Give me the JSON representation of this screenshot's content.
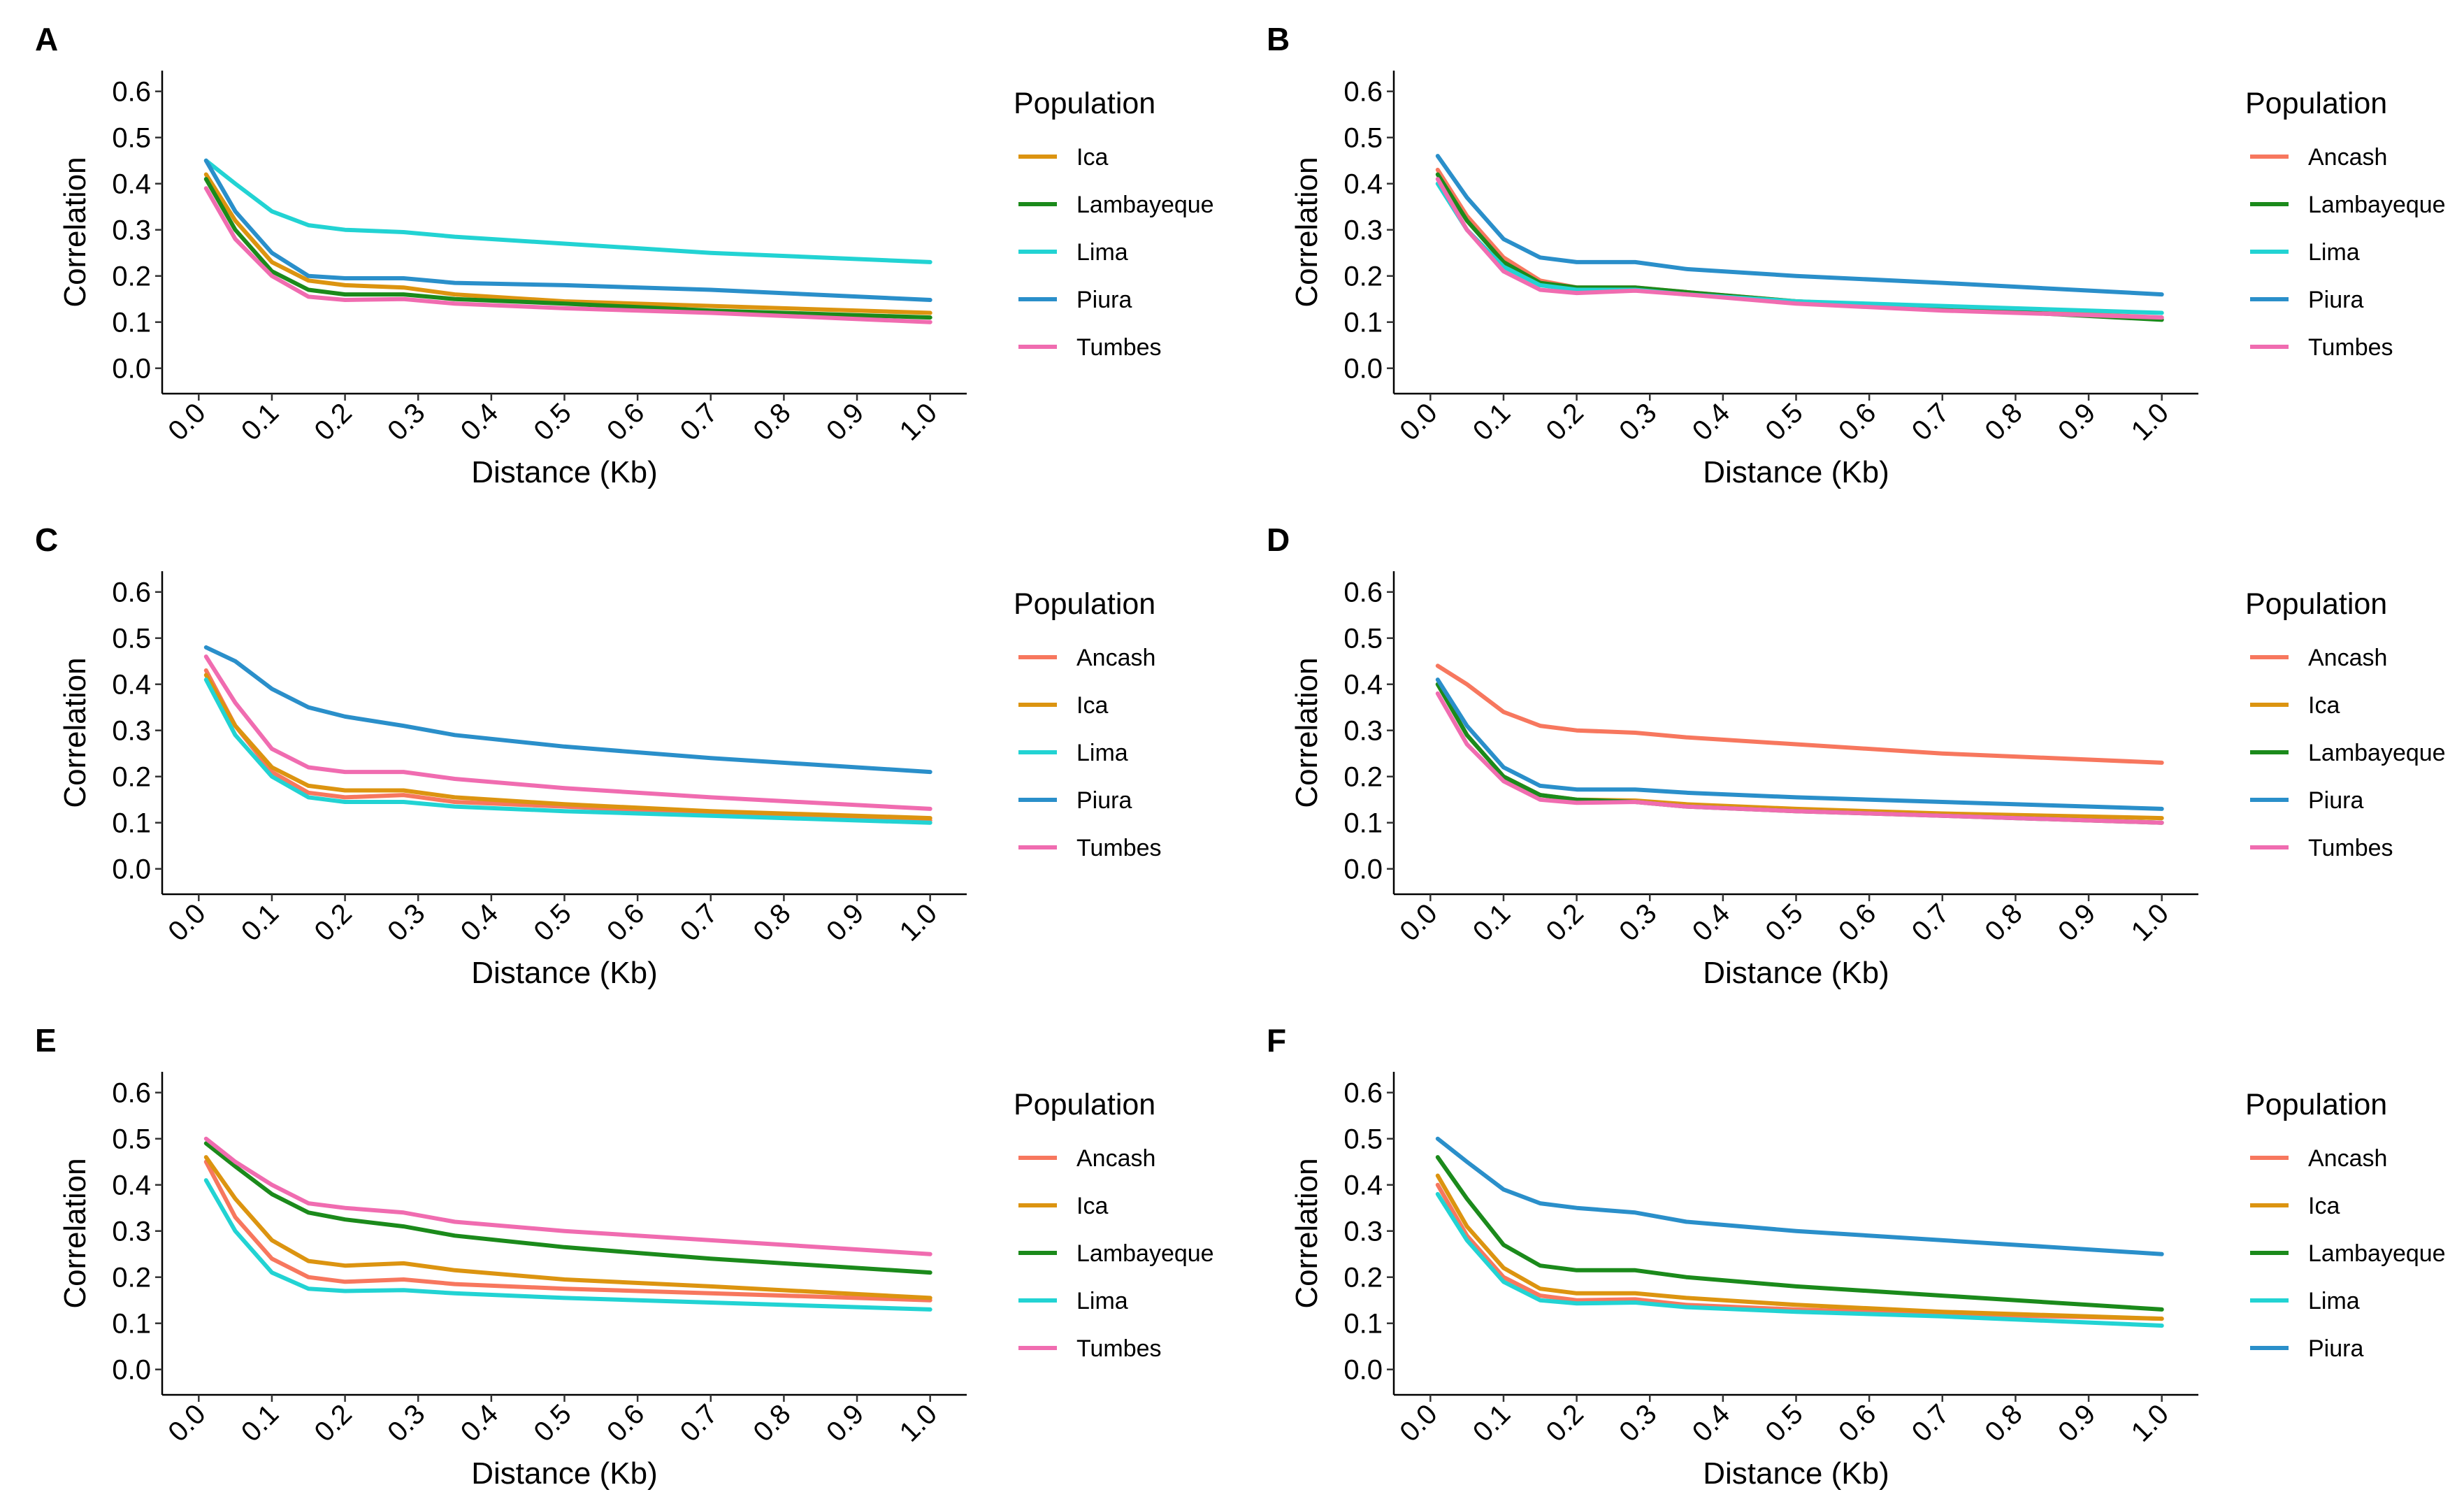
{
  "chart_data": [
    {
      "panel": "A",
      "type": "line",
      "x_label": "Distance (Kb)",
      "y_label": "Correlation",
      "legend_title": "Population",
      "x": [
        0.01,
        0.05,
        0.1,
        0.15,
        0.2,
        0.28,
        0.35,
        0.5,
        0.7,
        1.0
      ],
      "series": [
        {
          "name": "Ica",
          "color": "#dc9410",
          "values": [
            0.42,
            0.32,
            0.23,
            0.19,
            0.18,
            0.175,
            0.16,
            0.145,
            0.135,
            0.12
          ]
        },
        {
          "name": "Lambayeque",
          "color": "#1b8a1b",
          "values": [
            0.41,
            0.3,
            0.21,
            0.17,
            0.16,
            0.16,
            0.15,
            0.14,
            0.125,
            0.11
          ]
        },
        {
          "name": "Lima",
          "color": "#22d3d3",
          "values": [
            0.45,
            0.4,
            0.34,
            0.31,
            0.3,
            0.295,
            0.285,
            0.27,
            0.25,
            0.23
          ]
        },
        {
          "name": "Piura",
          "color": "#2a8fca",
          "values": [
            0.45,
            0.34,
            0.25,
            0.2,
            0.195,
            0.195,
            0.185,
            0.18,
            0.17,
            0.148
          ]
        },
        {
          "name": "Tumbes",
          "color": "#f06cb0",
          "values": [
            0.39,
            0.28,
            0.2,
            0.155,
            0.148,
            0.15,
            0.14,
            0.13,
            0.12,
            0.1
          ]
        }
      ],
      "xlim": [
        -0.05,
        1.05
      ],
      "ylim": [
        -0.055,
        0.645
      ],
      "xticks": [
        {
          "value": 0,
          "label": "0.0"
        },
        0.1,
        0.2,
        0.3,
        0.4,
        0.5,
        0.6,
        0.7,
        0.8,
        0.9,
        {
          "value": 1,
          "label": "1.0"
        }
      ],
      "yticks": [
        {
          "value": 0,
          "label": "0.0"
        },
        0.1,
        0.2,
        0.3,
        0.4,
        0.5,
        0.6
      ]
    },
    {
      "panel": "B",
      "type": "line",
      "x_label": "Distance (Kb)",
      "y_label": "Correlation",
      "legend_title": "Population",
      "x": [
        0.01,
        0.05,
        0.1,
        0.15,
        0.2,
        0.28,
        0.35,
        0.5,
        0.7,
        1.0
      ],
      "series": [
        {
          "name": "Ancash",
          "color": "#f7775e",
          "values": [
            0.43,
            0.33,
            0.24,
            0.19,
            0.175,
            0.175,
            0.165,
            0.145,
            0.13,
            0.11
          ]
        },
        {
          "name": "Lambayeque",
          "color": "#1b8a1b",
          "values": [
            0.42,
            0.32,
            0.23,
            0.185,
            0.175,
            0.175,
            0.165,
            0.145,
            0.13,
            0.105
          ]
        },
        {
          "name": "Lima",
          "color": "#22d3d3",
          "values": [
            0.4,
            0.3,
            0.22,
            0.18,
            0.17,
            0.17,
            0.16,
            0.145,
            0.135,
            0.12
          ]
        },
        {
          "name": "Piura",
          "color": "#2a8fca",
          "values": [
            0.46,
            0.37,
            0.28,
            0.24,
            0.23,
            0.23,
            0.215,
            0.2,
            0.185,
            0.16
          ]
        },
        {
          "name": "Tumbes",
          "color": "#f06cb0",
          "values": [
            0.41,
            0.3,
            0.21,
            0.17,
            0.163,
            0.168,
            0.16,
            0.14,
            0.125,
            0.11
          ]
        }
      ],
      "xlim": [
        -0.05,
        1.05
      ],
      "ylim": [
        -0.055,
        0.645
      ],
      "xticks": [
        {
          "value": 0,
          "label": "0.0"
        },
        0.1,
        0.2,
        0.3,
        0.4,
        0.5,
        0.6,
        0.7,
        0.8,
        0.9,
        {
          "value": 1,
          "label": "1.0"
        }
      ],
      "yticks": [
        {
          "value": 0,
          "label": "0.0"
        },
        0.1,
        0.2,
        0.3,
        0.4,
        0.5,
        0.6
      ]
    },
    {
      "panel": "C",
      "type": "line",
      "x_label": "Distance (Kb)",
      "y_label": "Correlation",
      "legend_title": "Population",
      "x": [
        0.01,
        0.05,
        0.1,
        0.15,
        0.2,
        0.28,
        0.35,
        0.5,
        0.7,
        1.0
      ],
      "series": [
        {
          "name": "Ancash",
          "color": "#f7775e",
          "values": [
            0.43,
            0.31,
            0.21,
            0.165,
            0.155,
            0.16,
            0.145,
            0.135,
            0.12,
            0.105
          ]
        },
        {
          "name": "Ica",
          "color": "#dc9410",
          "values": [
            0.42,
            0.31,
            0.22,
            0.18,
            0.17,
            0.17,
            0.155,
            0.14,
            0.125,
            0.11
          ]
        },
        {
          "name": "Lima",
          "color": "#22d3d3",
          "values": [
            0.41,
            0.29,
            0.2,
            0.155,
            0.145,
            0.145,
            0.135,
            0.125,
            0.115,
            0.1
          ]
        },
        {
          "name": "Piura",
          "color": "#2a8fca",
          "values": [
            0.48,
            0.45,
            0.39,
            0.35,
            0.33,
            0.31,
            0.29,
            0.265,
            0.24,
            0.21
          ]
        },
        {
          "name": "Tumbes",
          "color": "#f06cb0",
          "values": [
            0.46,
            0.36,
            0.26,
            0.22,
            0.21,
            0.21,
            0.195,
            0.175,
            0.155,
            0.13
          ]
        }
      ],
      "xlim": [
        -0.05,
        1.05
      ],
      "ylim": [
        -0.055,
        0.645
      ],
      "xticks": [
        {
          "value": 0,
          "label": "0.0"
        },
        0.1,
        0.2,
        0.3,
        0.4,
        0.5,
        0.6,
        0.7,
        0.8,
        0.9,
        {
          "value": 1,
          "label": "1.0"
        }
      ],
      "yticks": [
        {
          "value": 0,
          "label": "0.0"
        },
        0.1,
        0.2,
        0.3,
        0.4,
        0.5,
        0.6
      ]
    },
    {
      "panel": "D",
      "type": "line",
      "x_label": "Distance (Kb)",
      "y_label": "Correlation",
      "legend_title": "Population",
      "x": [
        0.01,
        0.05,
        0.1,
        0.15,
        0.2,
        0.28,
        0.35,
        0.5,
        0.7,
        1.0
      ],
      "series": [
        {
          "name": "Ancash",
          "color": "#f7775e",
          "values": [
            0.44,
            0.4,
            0.34,
            0.31,
            0.3,
            0.295,
            0.285,
            0.27,
            0.25,
            0.23
          ]
        },
        {
          "name": "Ica",
          "color": "#dc9410",
          "values": [
            0.4,
            0.29,
            0.2,
            0.16,
            0.15,
            0.148,
            0.14,
            0.13,
            0.12,
            0.11
          ]
        },
        {
          "name": "Lambayeque",
          "color": "#1b8a1b",
          "values": [
            0.4,
            0.29,
            0.2,
            0.16,
            0.15,
            0.145,
            0.135,
            0.125,
            0.115,
            0.1
          ]
        },
        {
          "name": "Piura",
          "color": "#2a8fca",
          "values": [
            0.41,
            0.31,
            0.22,
            0.18,
            0.172,
            0.172,
            0.165,
            0.155,
            0.145,
            0.13
          ]
        },
        {
          "name": "Tumbes",
          "color": "#f06cb0",
          "values": [
            0.38,
            0.27,
            0.19,
            0.15,
            0.143,
            0.145,
            0.135,
            0.125,
            0.115,
            0.1
          ]
        }
      ],
      "xlim": [
        -0.05,
        1.05
      ],
      "ylim": [
        -0.055,
        0.645
      ],
      "xticks": [
        {
          "value": 0,
          "label": "0.0"
        },
        0.1,
        0.2,
        0.3,
        0.4,
        0.5,
        0.6,
        0.7,
        0.8,
        0.9,
        {
          "value": 1,
          "label": "1.0"
        }
      ],
      "yticks": [
        {
          "value": 0,
          "label": "0.0"
        },
        0.1,
        0.2,
        0.3,
        0.4,
        0.5,
        0.6
      ]
    },
    {
      "panel": "E",
      "type": "line",
      "x_label": "Distance (Kb)",
      "y_label": "Correlation",
      "legend_title": "Population",
      "x": [
        0.01,
        0.05,
        0.1,
        0.15,
        0.2,
        0.28,
        0.35,
        0.5,
        0.7,
        1.0
      ],
      "series": [
        {
          "name": "Ancash",
          "color": "#f7775e",
          "values": [
            0.45,
            0.33,
            0.24,
            0.2,
            0.19,
            0.195,
            0.185,
            0.175,
            0.165,
            0.15
          ]
        },
        {
          "name": "Ica",
          "color": "#dc9410",
          "values": [
            0.46,
            0.37,
            0.28,
            0.235,
            0.225,
            0.23,
            0.215,
            0.195,
            0.18,
            0.155
          ]
        },
        {
          "name": "Lambayeque",
          "color": "#1b8a1b",
          "values": [
            0.49,
            0.44,
            0.38,
            0.34,
            0.325,
            0.31,
            0.29,
            0.265,
            0.24,
            0.21
          ]
        },
        {
          "name": "Lima",
          "color": "#22d3d3",
          "values": [
            0.41,
            0.3,
            0.21,
            0.175,
            0.17,
            0.172,
            0.165,
            0.155,
            0.145,
            0.13
          ]
        },
        {
          "name": "Tumbes",
          "color": "#f06cb0",
          "values": [
            0.5,
            0.45,
            0.4,
            0.36,
            0.35,
            0.34,
            0.32,
            0.3,
            0.28,
            0.25
          ]
        }
      ],
      "xlim": [
        -0.05,
        1.05
      ],
      "ylim": [
        -0.055,
        0.645
      ],
      "xticks": [
        {
          "value": 0,
          "label": "0.0"
        },
        0.1,
        0.2,
        0.3,
        0.4,
        0.5,
        0.6,
        0.7,
        0.8,
        0.9,
        {
          "value": 1,
          "label": "1.0"
        }
      ],
      "yticks": [
        {
          "value": 0,
          "label": "0.0"
        },
        0.1,
        0.2,
        0.3,
        0.4,
        0.5,
        0.6
      ]
    },
    {
      "panel": "F",
      "type": "line",
      "x_label": "Distance (Kb)",
      "y_label": "Correlation",
      "legend_title": "Population",
      "x": [
        0.01,
        0.05,
        0.1,
        0.15,
        0.2,
        0.28,
        0.35,
        0.5,
        0.7,
        1.0
      ],
      "series": [
        {
          "name": "Ancash",
          "color": "#f7775e",
          "values": [
            0.4,
            0.29,
            0.2,
            0.16,
            0.15,
            0.152,
            0.14,
            0.13,
            0.12,
            0.11
          ]
        },
        {
          "name": "Ica",
          "color": "#dc9410",
          "values": [
            0.42,
            0.31,
            0.22,
            0.175,
            0.165,
            0.165,
            0.155,
            0.14,
            0.125,
            0.11
          ]
        },
        {
          "name": "Lambayeque",
          "color": "#1b8a1b",
          "values": [
            0.46,
            0.37,
            0.27,
            0.225,
            0.215,
            0.215,
            0.2,
            0.18,
            0.16,
            0.13
          ]
        },
        {
          "name": "Lima",
          "color": "#22d3d3",
          "values": [
            0.38,
            0.28,
            0.19,
            0.15,
            0.143,
            0.145,
            0.135,
            0.125,
            0.115,
            0.095
          ]
        },
        {
          "name": "Piura",
          "color": "#2a8fca",
          "values": [
            0.5,
            0.45,
            0.39,
            0.36,
            0.35,
            0.34,
            0.32,
            0.3,
            0.28,
            0.25
          ]
        }
      ],
      "xlim": [
        -0.05,
        1.05
      ],
      "ylim": [
        -0.055,
        0.645
      ],
      "xticks": [
        {
          "value": 0,
          "label": "0.0"
        },
        0.1,
        0.2,
        0.3,
        0.4,
        0.5,
        0.6,
        0.7,
        0.8,
        0.9,
        {
          "value": 1,
          "label": "1.0"
        }
      ],
      "yticks": [
        {
          "value": 0,
          "label": "0.0"
        },
        0.1,
        0.2,
        0.3,
        0.4,
        0.5,
        0.6
      ]
    }
  ]
}
